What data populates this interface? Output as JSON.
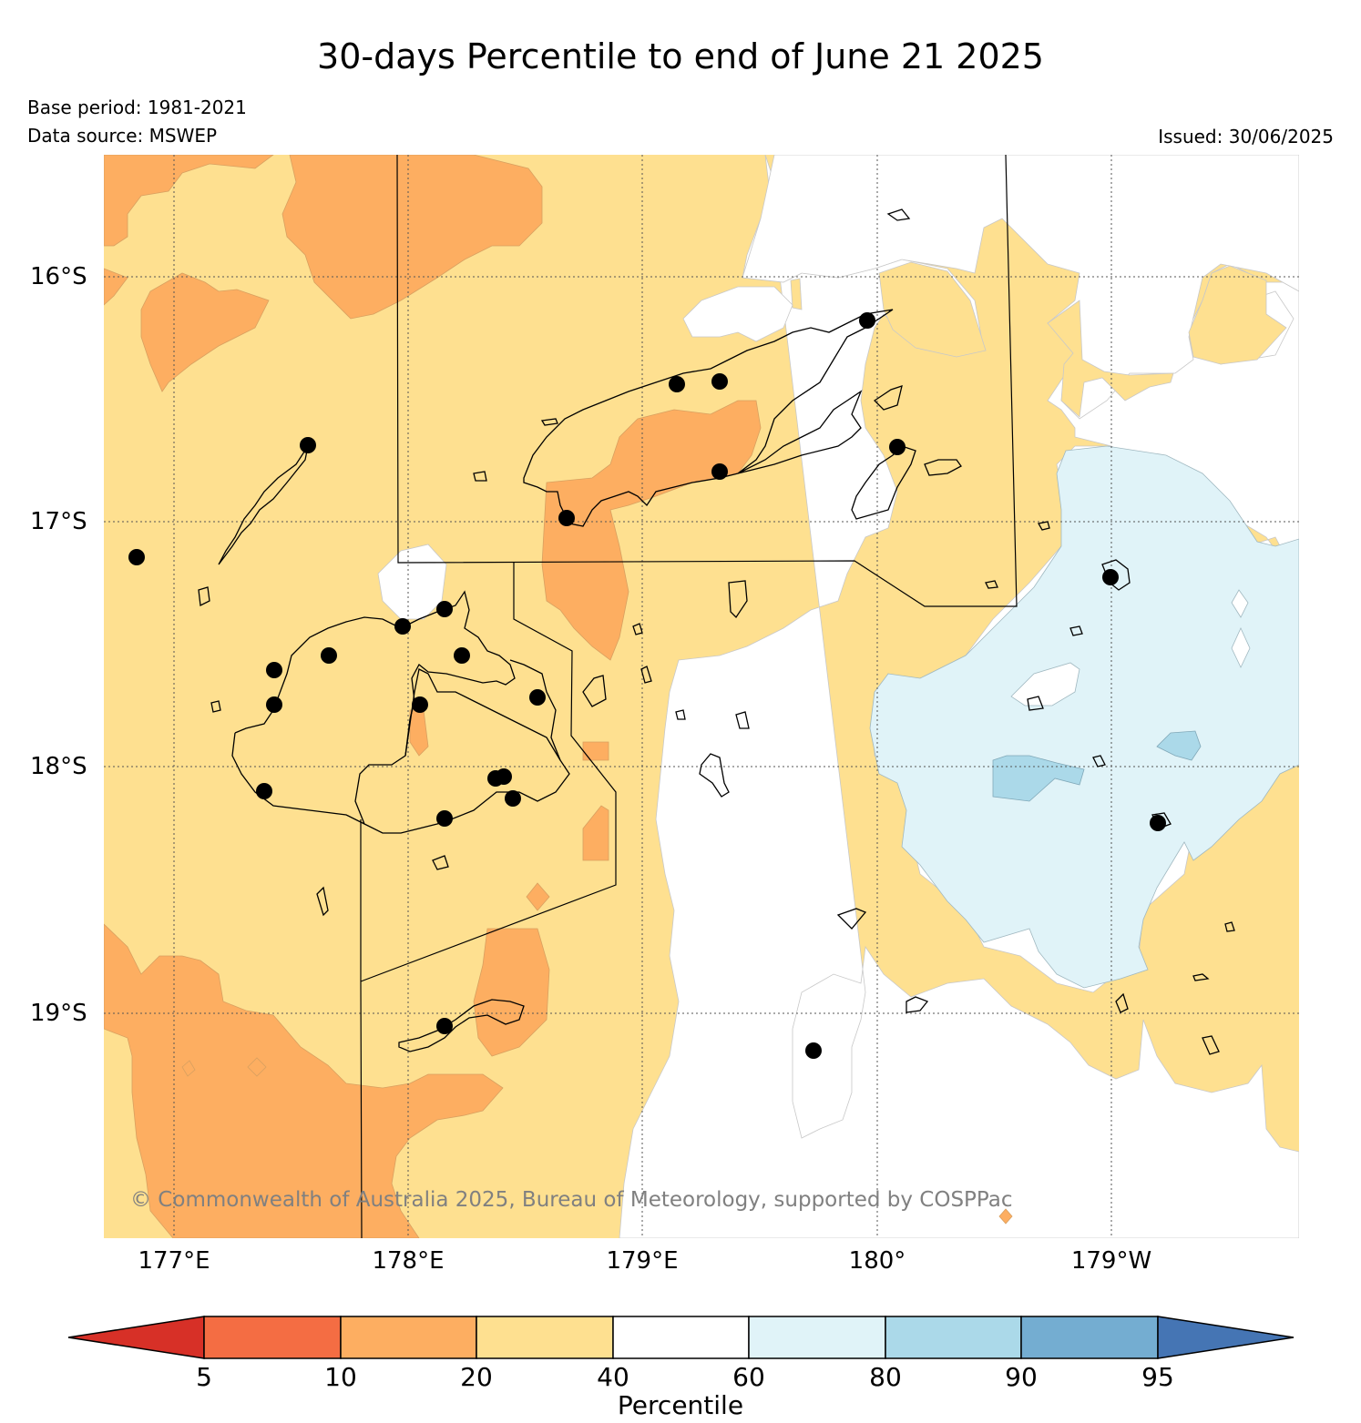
{
  "title": "30-days Percentile to end of June 21 2025",
  "base_period": "Base period: 1981-2021",
  "data_source": "Data source: MSWEP",
  "issued": "Issued: 30/06/2025",
  "credit": "© Commonwealth of Australia 2025, Bureau of Meteorology, supported by COSPPac",
  "axes": {
    "x_ticks": [
      "177°E",
      "178°E",
      "179°E",
      "180°",
      "179°W"
    ],
    "y_ticks": [
      "16°S",
      "17°S",
      "18°S",
      "19°S"
    ]
  },
  "colorbar": {
    "label": "Percentile",
    "ticks": [
      "5",
      "10",
      "20",
      "40",
      "60",
      "80",
      "90",
      "95"
    ],
    "colors": [
      "#d73027",
      "#f46d43",
      "#fdae61",
      "#fee090",
      "#ffffff",
      "#e0f3f8",
      "#abd9e9",
      "#74add1",
      "#4575b4"
    ]
  },
  "colors": {
    "p10_20": "#fdae61",
    "p20_40": "#fee090",
    "p40_60": "#ffffff",
    "p60_80": "#e0f3f8",
    "p80_90": "#abd9e9"
  }
}
